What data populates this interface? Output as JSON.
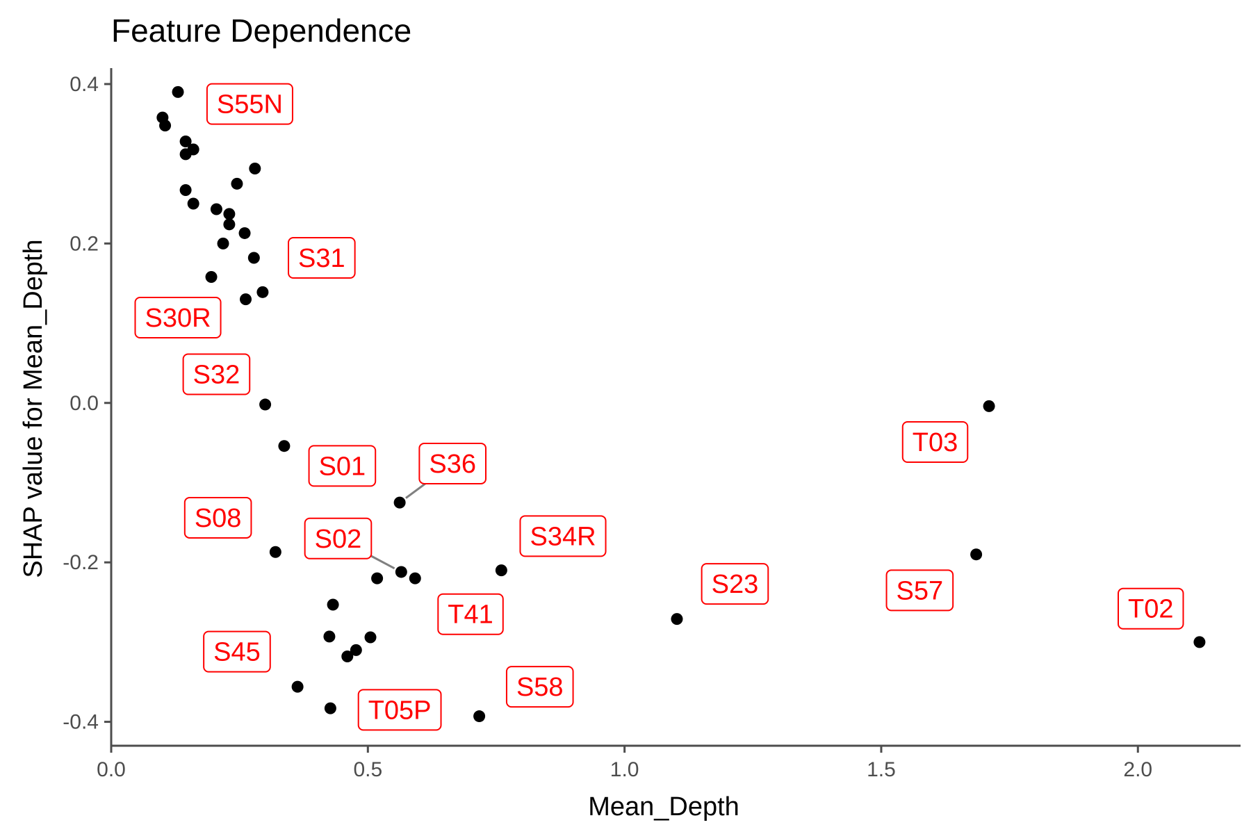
{
  "chart_data": {
    "type": "scatter",
    "title": "Feature Dependence",
    "xlabel": "Mean_Depth",
    "ylabel": "SHAP value for Mean_Depth",
    "xlim": [
      0,
      2.2
    ],
    "ylim": [
      -0.43,
      0.42
    ],
    "x_ticks": [
      {
        "value": 0.0,
        "label": "0.0"
      },
      {
        "value": 0.5,
        "label": "0.5"
      },
      {
        "value": 1.0,
        "label": "1.0"
      },
      {
        "value": 1.5,
        "label": "1.5"
      },
      {
        "value": 2.0,
        "label": "2.0"
      }
    ],
    "y_ticks": [
      {
        "value": 0.4,
        "label": "0.4"
      },
      {
        "value": 0.2,
        "label": "0.2"
      },
      {
        "value": 0.0,
        "label": "0.0"
      },
      {
        "value": -0.2,
        "label": "-0.2"
      },
      {
        "value": -0.4,
        "label": "-0.4"
      }
    ],
    "grid": false,
    "point_color": "#000000",
    "label_color": "#ff0000",
    "points": [
      {
        "x": 0.13,
        "y": 0.39
      },
      {
        "x": 0.1,
        "y": 0.358
      },
      {
        "x": 0.105,
        "y": 0.348
      },
      {
        "x": 0.145,
        "y": 0.328
      },
      {
        "x": 0.16,
        "y": 0.318
      },
      {
        "x": 0.145,
        "y": 0.312
      },
      {
        "x": 0.28,
        "y": 0.294
      },
      {
        "x": 0.245,
        "y": 0.275
      },
      {
        "x": 0.145,
        "y": 0.267
      },
      {
        "x": 0.16,
        "y": 0.25
      },
      {
        "x": 0.205,
        "y": 0.243
      },
      {
        "x": 0.23,
        "y": 0.237
      },
      {
        "x": 0.23,
        "y": 0.224
      },
      {
        "x": 0.26,
        "y": 0.213
      },
      {
        "x": 0.218,
        "y": 0.2
      },
      {
        "x": 0.278,
        "y": 0.182
      },
      {
        "x": 0.195,
        "y": 0.158
      },
      {
        "x": 0.295,
        "y": 0.139
      },
      {
        "x": 0.262,
        "y": 0.13
      },
      {
        "x": 0.3,
        "y": -0.002
      },
      {
        "x": 0.337,
        "y": -0.054
      },
      {
        "x": 0.562,
        "y": -0.125
      },
      {
        "x": 0.32,
        "y": -0.187
      },
      {
        "x": 0.76,
        "y": -0.21
      },
      {
        "x": 0.565,
        "y": -0.212
      },
      {
        "x": 0.518,
        "y": -0.22
      },
      {
        "x": 0.592,
        "y": -0.22
      },
      {
        "x": 0.432,
        "y": -0.253
      },
      {
        "x": 0.425,
        "y": -0.293
      },
      {
        "x": 0.505,
        "y": -0.294
      },
      {
        "x": 0.477,
        "y": -0.31
      },
      {
        "x": 0.46,
        "y": -0.318
      },
      {
        "x": 0.363,
        "y": -0.356
      },
      {
        "x": 0.427,
        "y": -0.383
      },
      {
        "x": 0.717,
        "y": -0.393
      },
      {
        "x": 1.102,
        "y": -0.271
      },
      {
        "x": 1.71,
        "y": -0.004
      },
      {
        "x": 1.685,
        "y": -0.19
      },
      {
        "x": 2.12,
        "y": -0.3
      }
    ],
    "labels": [
      {
        "text": "S55N",
        "x": 0.27,
        "y": 0.375
      },
      {
        "text": "S31",
        "x": 0.41,
        "y": 0.182
      },
      {
        "text": "S30R",
        "x": 0.13,
        "y": 0.107
      },
      {
        "text": "S32",
        "x": 0.205,
        "y": 0.036
      },
      {
        "text": "S01",
        "x": 0.45,
        "y": -0.079
      },
      {
        "text": "S36",
        "x": 0.665,
        "y": -0.076,
        "leader_to": {
          "x": 0.562,
          "y": -0.125
        }
      },
      {
        "text": "S08",
        "x": 0.208,
        "y": -0.144
      },
      {
        "text": "S02",
        "x": 0.442,
        "y": -0.17,
        "leader_to": {
          "x": 0.565,
          "y": -0.212
        }
      },
      {
        "text": "S34R",
        "x": 0.88,
        "y": -0.167
      },
      {
        "text": "T03",
        "x": 1.605,
        "y": -0.049
      },
      {
        "text": "S23",
        "x": 1.215,
        "y": -0.227
      },
      {
        "text": "S57",
        "x": 1.575,
        "y": -0.235
      },
      {
        "text": "T02",
        "x": 2.025,
        "y": -0.258
      },
      {
        "text": "T41",
        "x": 0.7,
        "y": -0.265
      },
      {
        "text": "S45",
        "x": 0.245,
        "y": -0.312
      },
      {
        "text": "S58",
        "x": 0.835,
        "y": -0.356
      },
      {
        "text": "T05P",
        "x": 0.562,
        "y": -0.385
      }
    ]
  }
}
